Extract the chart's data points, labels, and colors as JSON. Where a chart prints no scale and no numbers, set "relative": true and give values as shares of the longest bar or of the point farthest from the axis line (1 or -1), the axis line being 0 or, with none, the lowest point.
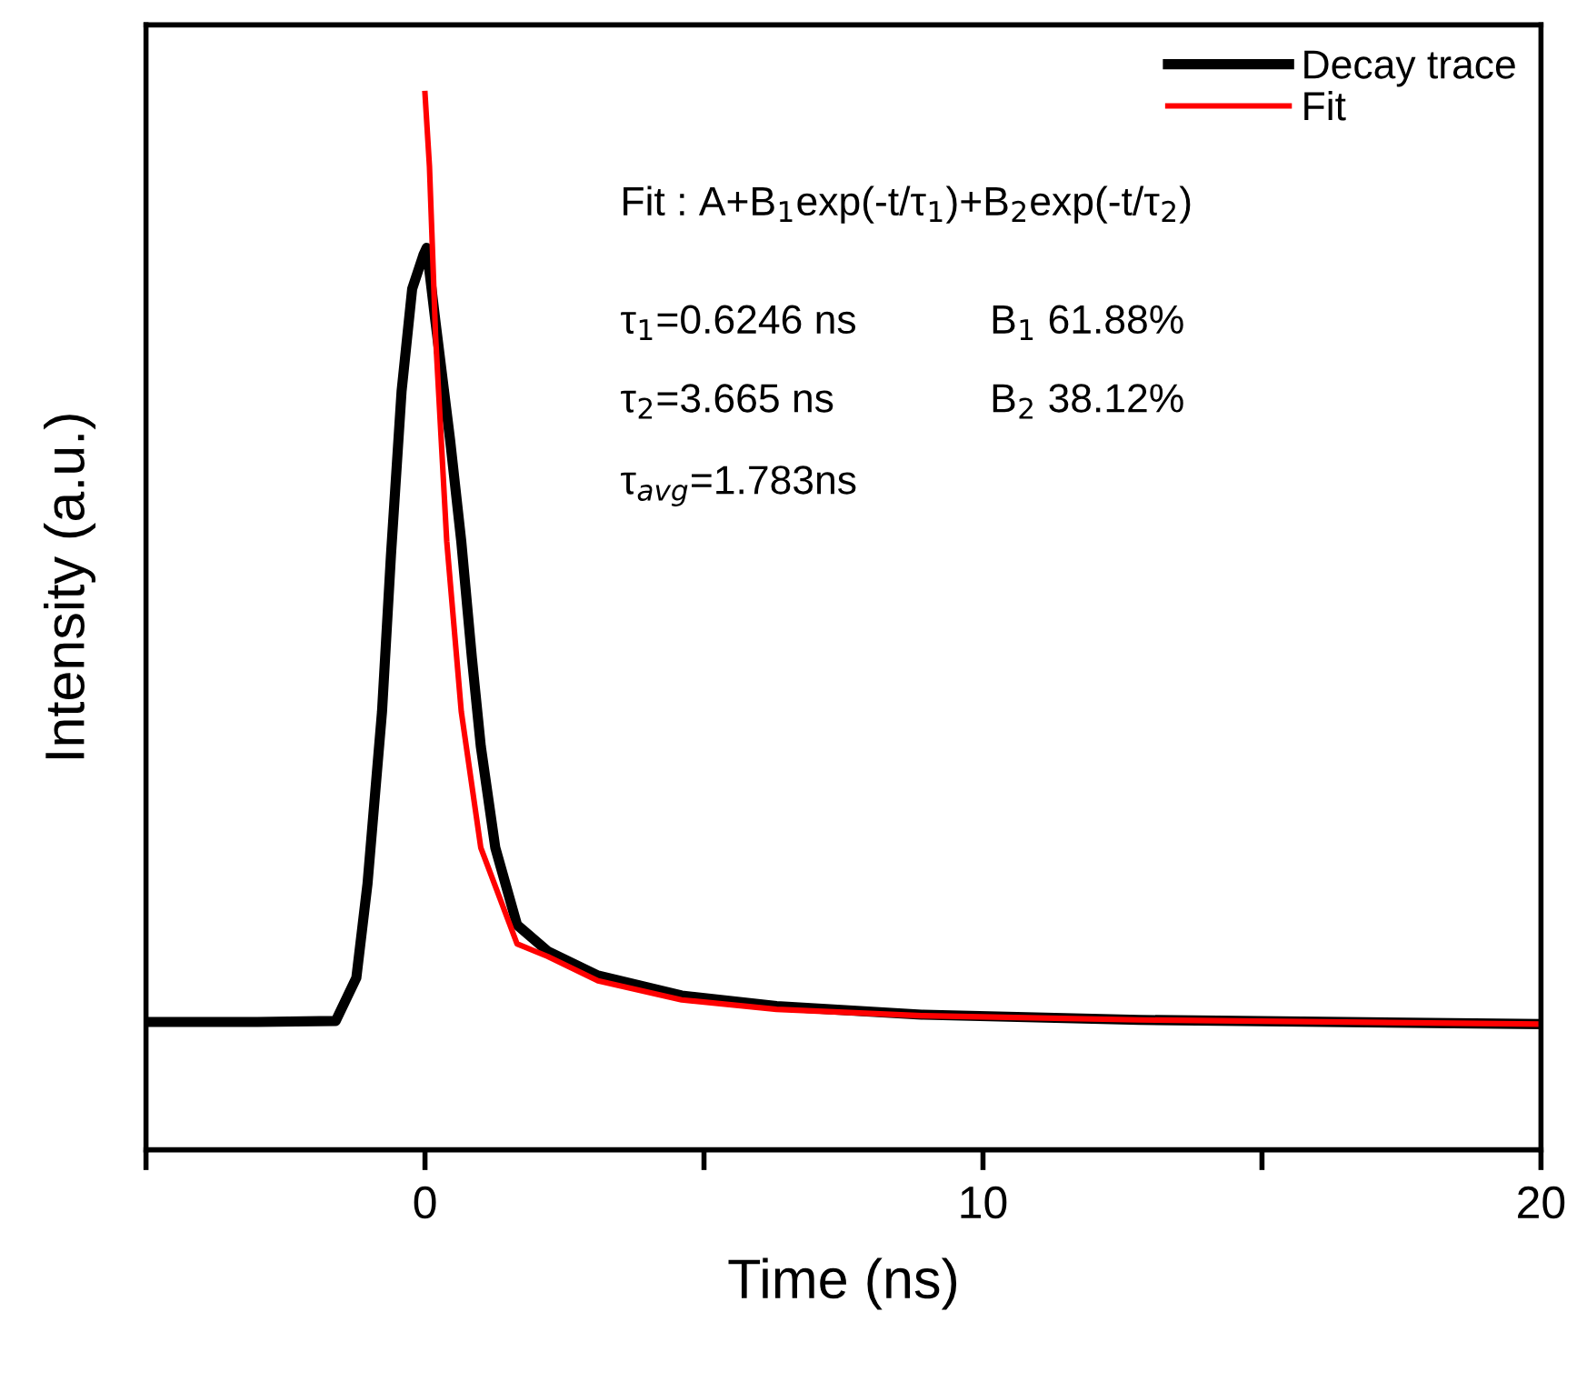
{
  "chart_data": {
    "type": "line",
    "xlabel": "Time (ns)",
    "ylabel": "Intensity (a.u.)",
    "relative": true,
    "xlim": [
      -5,
      20
    ],
    "xticks": [
      {
        "value": -5,
        "label": null
      },
      0,
      {
        "value": 5,
        "label": null
      },
      10,
      {
        "value": 15,
        "label": null
      },
      20
    ],
    "legend": "top right",
    "grid": false,
    "marker": "none",
    "line_style": "solid",
    "series": [
      {
        "name": "Decay trace",
        "color": "#000000",
        "x": [
          -5,
          -3,
          -1.6,
          -1.23,
          -1.03,
          -0.77,
          -0.61,
          -0.42,
          -0.23,
          -0.03,
          0.03,
          0.19,
          0.45,
          0.65,
          0.84,
          1.0,
          1.26,
          1.65,
          2.2,
          3.1,
          4.6,
          6.3,
          8.9,
          12.8,
          20
        ],
        "values": [
          0.121,
          0.121,
          0.122,
          0.163,
          0.252,
          0.415,
          0.563,
          0.718,
          0.815,
          0.847,
          0.854,
          0.783,
          0.672,
          0.576,
          0.466,
          0.382,
          0.286,
          0.213,
          0.188,
          0.165,
          0.146,
          0.136,
          0.128,
          0.123,
          0.119
        ]
      },
      {
        "name": "Fit",
        "color": "#ff0000",
        "x": [
          0,
          0.08,
          0.19,
          0.39,
          0.65,
          1.0,
          1.65,
          2.2,
          3.1,
          4.6,
          6.3,
          8.9,
          12.8,
          20
        ],
        "values": [
          1.0,
          0.931,
          0.77,
          0.576,
          0.415,
          0.286,
          0.195,
          0.183,
          0.16,
          0.142,
          0.133,
          0.127,
          0.123,
          0.119
        ]
      }
    ],
    "annotations": [
      "Fit : A+B$_{1}$exp(-t/τ$_{1}$)+B$_{2}$exp(-t/τ$_{2}$)",
      "τ$_{1}$=0.6246 ns",
      "B$_{1}$ 61.88%",
      "τ$_{2}$=3.665 ns",
      "B$_{2}$ 38.12%",
      "τ$_{avg}$=1.783ns"
    ]
  }
}
